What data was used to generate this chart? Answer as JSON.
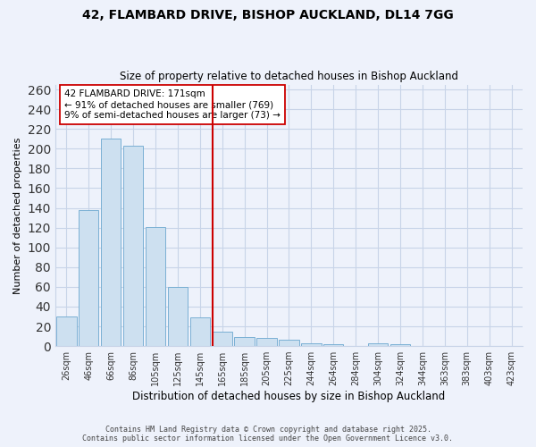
{
  "title_line1": "42, FLAMBARD DRIVE, BISHOP AUCKLAND, DL14 7GG",
  "title_line2": "Size of property relative to detached houses in Bishop Auckland",
  "xlabel": "Distribution of detached houses by size in Bishop Auckland",
  "ylabel": "Number of detached properties",
  "bar_labels": [
    "26sqm",
    "46sqm",
    "66sqm",
    "86sqm",
    "105sqm",
    "125sqm",
    "145sqm",
    "165sqm",
    "185sqm",
    "205sqm",
    "225sqm",
    "244sqm",
    "264sqm",
    "284sqm",
    "304sqm",
    "324sqm",
    "344sqm",
    "363sqm",
    "383sqm",
    "403sqm",
    "423sqm"
  ],
  "bar_values": [
    30,
    138,
    210,
    203,
    121,
    60,
    29,
    15,
    9,
    8,
    6,
    3,
    2,
    0,
    3,
    2,
    0,
    0,
    0,
    0,
    0
  ],
  "bar_color": "#cde0f0",
  "bar_edge_color": "#7ab0d4",
  "highlight_line_color": "#cc0000",
  "annotation_text": "42 FLAMBARD DRIVE: 171sqm\n← 91% of detached houses are smaller (769)\n9% of semi-detached houses are larger (73) →",
  "annotation_box_color": "#ffffff",
  "annotation_box_edge_color": "#cc0000",
  "ylim": [
    0,
    265
  ],
  "yticks": [
    0,
    20,
    40,
    60,
    80,
    100,
    120,
    140,
    160,
    180,
    200,
    220,
    240,
    260
  ],
  "background_color": "#eef2fb",
  "grid_color": "#c8d4e8",
  "footer_line1": "Contains HM Land Registry data © Crown copyright and database right 2025.",
  "footer_line2": "Contains public sector information licensed under the Open Government Licence v3.0."
}
